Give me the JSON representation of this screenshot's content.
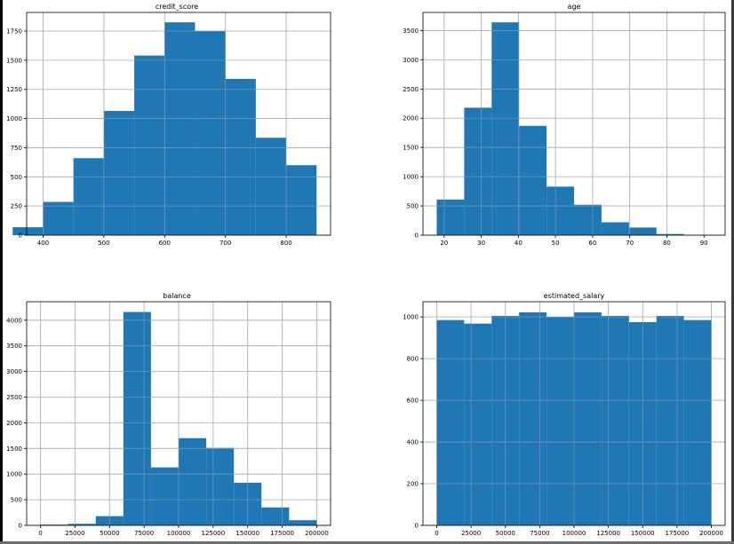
{
  "colors": {
    "bar_fill": "#1f77b4",
    "grid": "#b0b0b0",
    "axis": "#000000",
    "background": "#ffffff"
  },
  "chart_data": [
    {
      "type": "bar",
      "title": "credit_score",
      "xlabel": "",
      "ylabel": "",
      "grid": true,
      "bin_edges": [
        350,
        400,
        450,
        500,
        550,
        600,
        650,
        700,
        750,
        800,
        850
      ],
      "values": [
        68,
        285,
        660,
        1065,
        1540,
        1825,
        1750,
        1340,
        835,
        600
      ],
      "xlim": [
        373,
        873
      ],
      "ylim": [
        0,
        1910
      ],
      "xticks": [
        400,
        500,
        600,
        700,
        800
      ],
      "yticks": [
        0,
        250,
        500,
        750,
        1000,
        1250,
        1500,
        1750
      ]
    },
    {
      "type": "bar",
      "title": "age",
      "xlabel": "",
      "ylabel": "",
      "grid": true,
      "bin_edges": [
        18,
        25.4,
        32.8,
        40.2,
        47.6,
        55.0,
        62.4,
        69.8,
        77.2,
        84.6,
        92
      ],
      "values": [
        610,
        2180,
        3640,
        1870,
        830,
        520,
        220,
        130,
        20,
        5
      ],
      "xlim": [
        14.3,
        95.7
      ],
      "ylim": [
        0,
        3810
      ],
      "xticks": [
        20,
        30,
        40,
        50,
        60,
        70,
        80,
        90
      ],
      "yticks": [
        0,
        500,
        1000,
        1500,
        2000,
        2500,
        3000,
        3500
      ]
    },
    {
      "type": "bar",
      "title": "balance",
      "xlabel": "",
      "ylabel": "",
      "grid": true,
      "bin_edges": [
        0,
        20000,
        40000,
        60000,
        80000,
        100000,
        120000,
        140000,
        160000,
        180000,
        200000
      ],
      "values": [
        15,
        30,
        180,
        4160,
        1130,
        1700,
        1510,
        830,
        350,
        100
      ],
      "xlim": [
        -10000,
        210000
      ],
      "ylim": [
        0,
        4360
      ],
      "xticks": [
        0,
        25000,
        50000,
        75000,
        100000,
        125000,
        150000,
        175000,
        200000
      ],
      "yticks": [
        0,
        500,
        1000,
        1500,
        2000,
        2500,
        3000,
        3500,
        4000
      ]
    },
    {
      "type": "bar",
      "title": "estimated_salary",
      "xlabel": "",
      "ylabel": "",
      "grid": true,
      "bin_edges": [
        0,
        20000,
        40000,
        60000,
        80000,
        100000,
        120000,
        140000,
        160000,
        180000,
        200000
      ],
      "values": [
        985,
        968,
        1005,
        1022,
        1000,
        1022,
        1005,
        975,
        1005,
        985
      ],
      "xlim": [
        -10000,
        210000
      ],
      "ylim": [
        0,
        1073
      ],
      "xticks": [
        0,
        25000,
        50000,
        75000,
        100000,
        125000,
        150000,
        175000,
        200000
      ],
      "yticks": [
        0,
        200,
        400,
        600,
        800,
        1000
      ]
    }
  ]
}
